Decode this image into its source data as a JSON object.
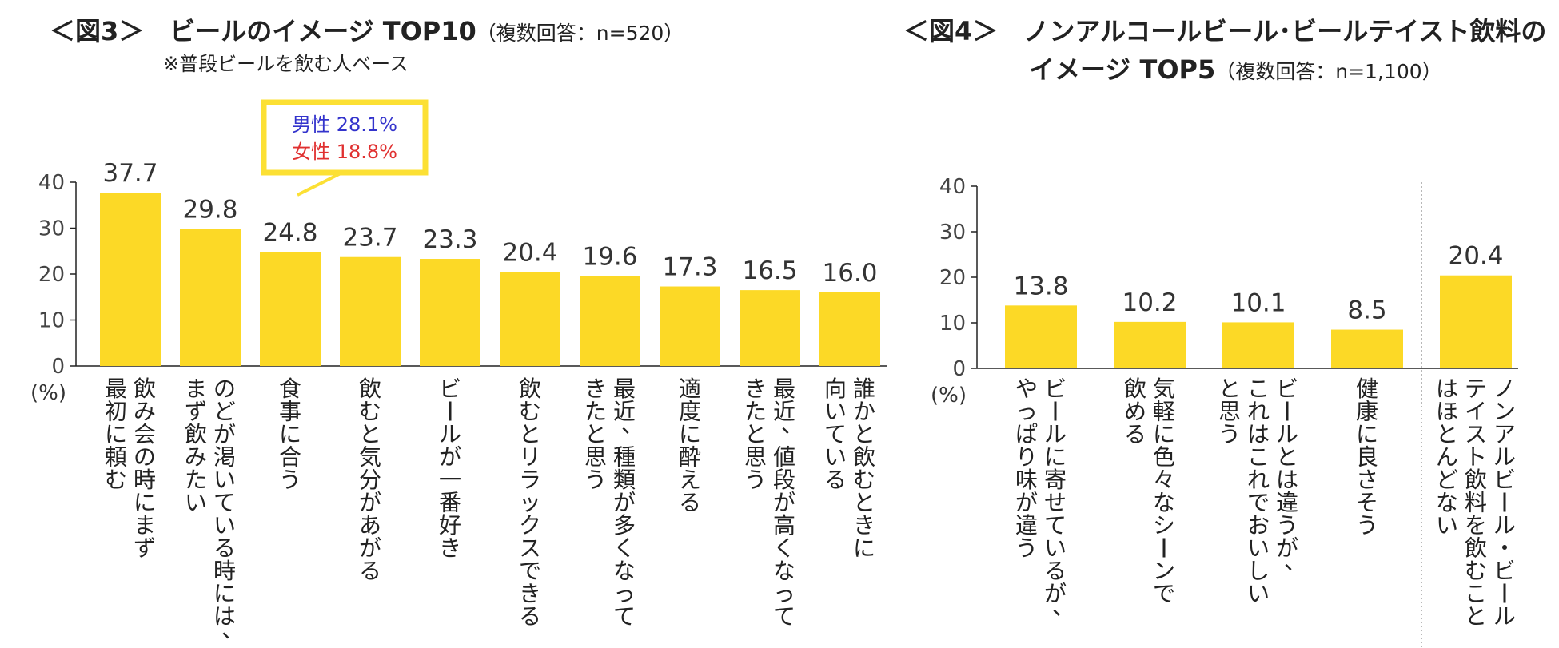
{
  "figure3": {
    "title": "＜図3＞　ビールのイメージ TOP10",
    "subtitle": "（複数回答：n=520）",
    "note": "※普段ビールを飲む人ベース"
  },
  "figure4": {
    "title_line1": "＜図4＞　ノンアルコールビール･ビールテイスト飲料の",
    "title_line2": "イメージ TOP5",
    "subtitle": "（複数回答：n=1,100）"
  },
  "chart_data": [
    {
      "type": "bar",
      "title": "ビールのイメージ TOP10",
      "ylabel": "(%)",
      "ylim": [
        0,
        40
      ],
      "yticks": [
        "0",
        "10",
        "20",
        "30",
        "40"
      ],
      "categories": [
        [
          "飲み会の時にまず",
          "最初に頼む"
        ],
        [
          "のどが渇いている時には、",
          "まず飲みたい"
        ],
        [
          "食事に合う"
        ],
        [
          "飲むと気分があがる"
        ],
        [
          "ビールが一番好き"
        ],
        [
          "飲むとリラックスできる"
        ],
        [
          "最近、種類が多くなって",
          "きたと思う"
        ],
        [
          "適度に酔える"
        ],
        [
          "最近、値段が高くなって",
          "きたと思う"
        ],
        [
          "誰かと飲むときに",
          "向いている"
        ]
      ],
      "values": [
        37.7,
        29.8,
        24.8,
        23.7,
        23.3,
        20.4,
        19.6,
        17.3,
        16.5,
        16.0
      ],
      "labels": [
        "37.7",
        "29.8",
        "24.8",
        "23.7",
        "23.3",
        "20.4",
        "19.6",
        "17.3",
        "16.5",
        "16.0"
      ],
      "callout": {
        "target": 1,
        "male": "男性 28.1%",
        "female": "女性 18.8%"
      }
    },
    {
      "type": "bar",
      "title": "ノンアルコールビール･ビールテイスト飲料のイメージ TOP5",
      "ylabel": "(%)",
      "ylim": [
        0,
        40
      ],
      "yticks": [
        "0",
        "10",
        "20",
        "30",
        "40"
      ],
      "categories": [
        [
          "ビールに寄せているが、",
          "やっぱり味が違う"
        ],
        [
          "気軽に色々なシーンで",
          "飲める"
        ],
        [
          "ビールとは違うが、",
          "これはこれでおいしい",
          "と思う"
        ],
        [
          "健康に良さそう"
        ],
        [
          "ノンアルビール・ビール",
          "テイスト飲料を飲むこと",
          "はほとんどない"
        ]
      ],
      "values": [
        13.8,
        10.2,
        10.1,
        8.5,
        20.4
      ],
      "labels": [
        "13.8",
        "10.2",
        "10.1",
        "8.5",
        "20.4"
      ],
      "separator_before": 4
    }
  ],
  "colors": {
    "bar": "#fcd926",
    "callout_border": "#fce034",
    "axis": "#222222",
    "separator": "#888888"
  }
}
